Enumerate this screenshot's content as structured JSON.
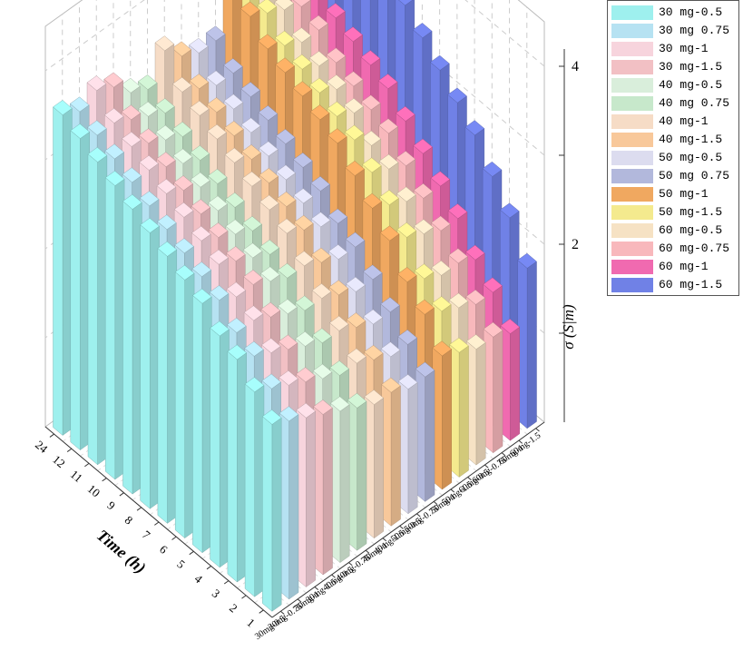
{
  "chart_data": {
    "type": "bar3d",
    "zlabel": "σ (S|m)",
    "xlabel": "Time (h)",
    "z_ticks": [
      "2",
      "4"
    ],
    "zlim": [
      0,
      4.5
    ],
    "times": [
      "1",
      "2",
      "3",
      "4",
      "5",
      "6",
      "7",
      "8",
      "9",
      "10",
      "11",
      "12",
      "24"
    ],
    "groups": [
      "30mg-0.5",
      "30mg-0.75",
      "30mg-1",
      "30mg-1.5",
      "40mg-0.5",
      "40mg-0.75",
      "40mg-1",
      "40mg-1.5",
      "50mg-0.5",
      "50mg-0.75",
      "50mg-1",
      "50mg-1.5",
      "60mg-0.5",
      "60mg-0.75",
      "60mg-1",
      "60mg-1.5"
    ],
    "legend_position": "top-right",
    "series": [
      {
        "name": "30 mg-0.5",
        "color": "#9ef0ee",
        "values": [
          2.1,
          2.3,
          2.5,
          2.6,
          2.8,
          2.9,
          3.0,
          3.1,
          3.2,
          3.3,
          3.4,
          3.5,
          3.6
        ]
      },
      {
        "name": "30 mg 0.75",
        "color": "#b6e2f2",
        "values": [
          2.0,
          2.2,
          2.4,
          2.5,
          2.7,
          2.8,
          2.9,
          3.0,
          3.1,
          3.2,
          3.3,
          3.4,
          3.5
        ]
      },
      {
        "name": "30 mg-1",
        "color": "#f7d4dd",
        "values": [
          1.9,
          2.1,
          2.3,
          2.5,
          2.6,
          2.8,
          2.9,
          3.0,
          3.1,
          3.2,
          3.3,
          3.4,
          3.6
        ]
      },
      {
        "name": "30 mg-1.5",
        "color": "#f2c0c4",
        "values": [
          1.8,
          2.0,
          2.2,
          2.4,
          2.6,
          2.7,
          2.8,
          2.9,
          3.0,
          3.1,
          3.2,
          3.3,
          3.5
        ]
      },
      {
        "name": "40 mg-0.5",
        "color": "#d9eedb",
        "values": [
          1.7,
          1.9,
          2.1,
          2.3,
          2.5,
          2.6,
          2.7,
          2.8,
          2.9,
          3.0,
          3.1,
          3.2,
          3.3
        ]
      },
      {
        "name": "40 mg 0.75",
        "color": "#c7e8cb",
        "values": [
          1.6,
          1.8,
          2.0,
          2.2,
          2.4,
          2.5,
          2.6,
          2.7,
          2.8,
          2.9,
          3.0,
          3.1,
          3.2
        ]
      },
      {
        "name": "40 mg-1",
        "color": "#f6dcc6",
        "values": [
          1.5,
          1.8,
          2.0,
          2.2,
          2.4,
          2.6,
          2.7,
          2.8,
          2.9,
          3.0,
          3.1,
          3.2,
          3.5
        ]
      },
      {
        "name": "40 mg-1.5",
        "color": "#f8c89a",
        "values": [
          1.5,
          1.7,
          1.9,
          2.1,
          2.3,
          2.5,
          2.6,
          2.7,
          2.8,
          2.9,
          3.0,
          3.1,
          3.3
        ]
      },
      {
        "name": "50 mg-0.5",
        "color": "#dcdcef",
        "values": [
          1.4,
          1.6,
          1.8,
          2.0,
          2.2,
          2.4,
          2.5,
          2.6,
          2.7,
          2.8,
          2.9,
          3.0,
          3.2
        ]
      },
      {
        "name": "50 mg 0.75",
        "color": "#b2b8dc",
        "values": [
          1.4,
          1.6,
          1.8,
          2.0,
          2.2,
          2.3,
          2.5,
          2.6,
          2.7,
          2.8,
          2.9,
          3.0,
          3.2
        ]
      },
      {
        "name": "50 mg-1",
        "color": "#f0a860",
        "values": [
          1.5,
          1.8,
          2.0,
          2.3,
          2.5,
          2.7,
          2.9,
          3.0,
          3.1,
          3.2,
          3.3,
          3.5,
          3.9
        ]
      },
      {
        "name": "50 mg-1.5",
        "color": "#f4ea8e",
        "values": [
          1.4,
          1.7,
          1.9,
          2.2,
          2.4,
          2.6,
          2.8,
          2.9,
          3.0,
          3.1,
          3.2,
          3.4,
          3.6
        ]
      },
      {
        "name": "60 mg-0.5",
        "color": "#f6e2c4",
        "values": [
          1.3,
          1.6,
          1.8,
          2.1,
          2.3,
          2.5,
          2.6,
          2.8,
          2.9,
          3.0,
          3.1,
          3.3,
          3.6
        ]
      },
      {
        "name": "60 mg-0.75",
        "color": "#f8b8bc",
        "values": [
          1.3,
          1.5,
          1.8,
          2.0,
          2.2,
          2.4,
          2.6,
          2.7,
          2.8,
          2.9,
          3.1,
          3.2,
          3.5
        ]
      },
      {
        "name": "60 mg-1",
        "color": "#f06ab0",
        "values": [
          1.2,
          1.5,
          1.7,
          2.0,
          2.2,
          2.4,
          2.6,
          2.8,
          2.9,
          3.0,
          3.1,
          3.3,
          3.6
        ]
      },
      {
        "name": "60 mg-1.5",
        "color": "#7081e6",
        "values": [
          1.8,
          2.2,
          2.5,
          2.8,
          3.0,
          3.2,
          3.4,
          3.6,
          3.7,
          3.8,
          3.9,
          4.1,
          4.3
        ]
      }
    ]
  }
}
